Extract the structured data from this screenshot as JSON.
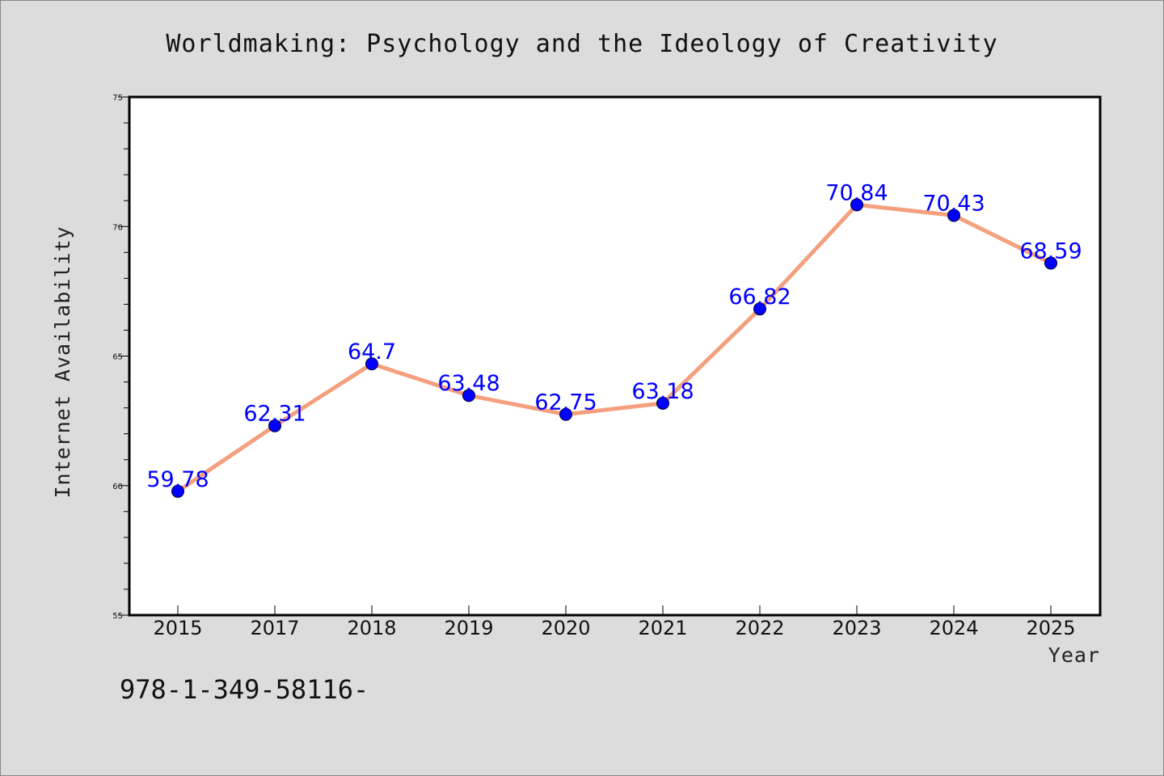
{
  "chart_data": {
    "type": "line",
    "title": "Worldmaking: Psychology and the Ideology of Creativity",
    "xlabel": "Year",
    "ylabel": "Internet Availability",
    "categories": [
      "2015",
      "2017",
      "2018",
      "2019",
      "2020",
      "2021",
      "2022",
      "2023",
      "2024",
      "2025"
    ],
    "series": [
      {
        "values": [
          59.78,
          62.31,
          64.7,
          63.48,
          62.75,
          63.18,
          66.82,
          70.84,
          70.43,
          68.59
        ],
        "labels": [
          "59.78",
          "62.31",
          "64.7",
          "63.48",
          "62.75",
          "63.18",
          "66.82",
          "70.84",
          "70.43",
          "68.59"
        ],
        "line_color": "#f4a07e",
        "marker_color": "#0000ff"
      }
    ],
    "ylim": [
      55,
      75
    ],
    "yticks": [
      "55",
      "60",
      "65",
      "70",
      "75"
    ],
    "grid": false,
    "legend": "none",
    "background": "#dcdcdc",
    "plot_background": "#ffffff"
  },
  "footer": {
    "text": "978-1-349-58116-"
  }
}
